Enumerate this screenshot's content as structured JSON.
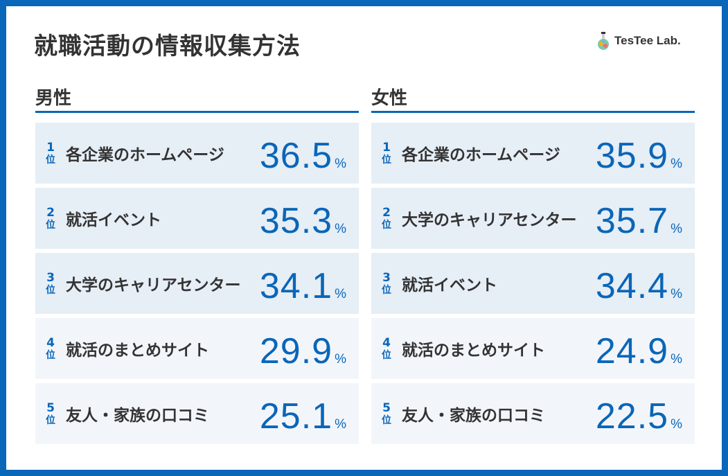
{
  "title": "就職活動の情報収集方法",
  "logo": {
    "text": "TesTee Lab.",
    "icon": "flask-icon"
  },
  "colors": {
    "accent": "#0a66b8",
    "text": "#333333",
    "row_dark": "#e6eef6",
    "row_light": "#f2f6fb"
  },
  "chart_data": {
    "type": "table",
    "rank_unit": "位",
    "value_unit": "%",
    "groups": [
      {
        "name": "男性",
        "items": [
          {
            "rank": "1",
            "label": "各企業のホームページ",
            "value": "36.5"
          },
          {
            "rank": "2",
            "label": "就活イベント",
            "value": "35.3"
          },
          {
            "rank": "3",
            "label": "大学のキャリアセンター",
            "value": "34.1"
          },
          {
            "rank": "4",
            "label": "就活のまとめサイト",
            "value": "29.9"
          },
          {
            "rank": "5",
            "label": "友人・家族の口コミ",
            "value": "25.1"
          }
        ]
      },
      {
        "name": "女性",
        "items": [
          {
            "rank": "1",
            "label": "各企業のホームページ",
            "value": "35.9"
          },
          {
            "rank": "2",
            "label": "大学のキャリアセンター",
            "value": "35.7"
          },
          {
            "rank": "3",
            "label": "就活イベント",
            "value": "34.4"
          },
          {
            "rank": "4",
            "label": "就活のまとめサイト",
            "value": "24.9"
          },
          {
            "rank": "5",
            "label": "友人・家族の口コミ",
            "value": "22.5"
          }
        ]
      }
    ]
  }
}
